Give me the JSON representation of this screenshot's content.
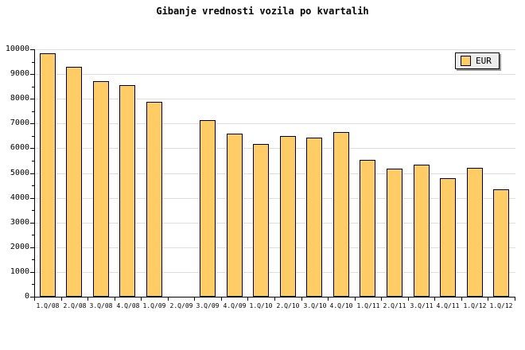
{
  "title": "Gibanje vrednosti vozila po kvartalih",
  "legend": {
    "label": "EUR"
  },
  "colors": {
    "background": "#FFFFFF",
    "text": "#000000",
    "axis": "#000000",
    "gridline": "#DEDEDE",
    "bar_fill": "#FFCC66",
    "bar_border": "#000000",
    "legend_bg": "#EDEDED",
    "legend_shadow": "#999999"
  },
  "y_axis": {
    "tick_labels": [
      "0",
      "1000",
      "2000",
      "3000",
      "4000",
      "5000",
      "6000",
      "7000",
      "8000",
      "9000",
      "10000"
    ]
  },
  "chart_data": {
    "type": "bar",
    "title": "Gibanje vrednosti vozila po kvartalih",
    "categories": [
      "1.Q/08",
      "2.Q/08",
      "3.Q/08",
      "4.Q/08",
      "1.Q/09",
      "2.Q/09",
      "3.Q/09",
      "4.Q/09",
      "1.Q/10",
      "2.Q/10",
      "3.Q/10",
      "4.Q/10",
      "1.Q/11",
      "2.Q/11",
      "3.Q/11",
      "4.Q/11",
      "1.Q/12",
      "1.Q/12"
    ],
    "series": [
      {
        "name": "EUR",
        "values": [
          9840,
          9280,
          8700,
          8550,
          7880,
          null,
          7150,
          6600,
          6160,
          6480,
          6420,
          6670,
          5530,
          5170,
          5340,
          4800,
          5210,
          4350
        ]
      }
    ],
    "xlabel": "",
    "ylabel": "",
    "ylim": [
      0,
      10000
    ],
    "y_major_step": 1000,
    "y_minor_step": 500,
    "grid": true,
    "legend_position": "top-right",
    "bar_gap_note": ""
  }
}
